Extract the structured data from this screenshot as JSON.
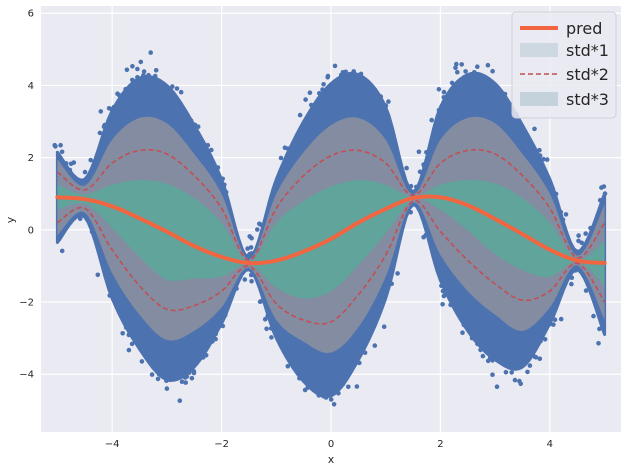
{
  "chart_data": {
    "type": "scatter",
    "xlabel": "x",
    "ylabel": "y",
    "xlim": [
      -5.3,
      5.3
    ],
    "ylim": [
      -5.6,
      6.2
    ],
    "xticks": [
      -4,
      -2,
      0,
      2,
      4
    ],
    "yticks": [
      -4,
      -2,
      0,
      2,
      4,
      6
    ],
    "grid": true,
    "legend_position": "top-right",
    "colors": {
      "background": "#eaeaf2",
      "grid": "#ffffff",
      "scatter": "#4c72b0",
      "pred": "#f26541",
      "std1": "#5aa89a",
      "std2": "#c44e52",
      "std3": "#8a8fa0"
    },
    "series": [
      {
        "name": "pred",
        "kind": "line",
        "x": [
          -5.0,
          -4.5,
          -4.0,
          -3.5,
          -3.0,
          -2.5,
          -2.0,
          -1.5,
          -1.0,
          -0.5,
          0.0,
          0.5,
          1.0,
          1.5,
          2.0,
          2.5,
          3.0,
          3.5,
          4.0,
          4.5,
          5.0
        ],
        "y": [
          0.9,
          0.85,
          0.65,
          0.32,
          -0.05,
          -0.45,
          -0.75,
          -0.92,
          -0.85,
          -0.6,
          -0.25,
          0.2,
          0.58,
          0.88,
          0.9,
          0.68,
          0.3,
          -0.12,
          -0.55,
          -0.85,
          -0.92
        ]
      },
      {
        "name": "std*1",
        "kind": "band",
        "x": [
          -5.0,
          -4.5,
          -4.0,
          -3.5,
          -3.0,
          -2.5,
          -2.0,
          -1.5,
          -1.0,
          -0.5,
          0.0,
          0.5,
          1.0,
          1.5,
          2.0,
          2.5,
          3.0,
          3.5,
          4.0,
          4.5,
          5.0
        ],
        "upper": [
          1.25,
          0.98,
          1.25,
          1.38,
          1.28,
          0.88,
          0.2,
          -0.88,
          0.2,
          0.8,
          1.2,
          1.38,
          1.25,
          0.92,
          1.25,
          1.38,
          1.28,
          0.88,
          0.2,
          -0.82,
          -0.3
        ],
        "lower": [
          0.55,
          0.72,
          0.05,
          -0.75,
          -1.38,
          -1.35,
          -1.3,
          -0.96,
          -1.6,
          -1.9,
          -1.7,
          -0.98,
          -0.1,
          0.84,
          0.55,
          -0.02,
          -0.68,
          -1.12,
          -1.3,
          -0.88,
          -1.55
        ]
      },
      {
        "name": "std*2",
        "kind": "dashed-band",
        "x": [
          -5.0,
          -4.5,
          -4.0,
          -3.5,
          -3.0,
          -2.5,
          -2.0,
          -1.5,
          -1.0,
          -0.5,
          0.0,
          0.5,
          1.0,
          1.5,
          2.0,
          2.5,
          3.0,
          3.5,
          4.0,
          4.5,
          5.0
        ],
        "upper": [
          1.6,
          1.1,
          1.85,
          2.2,
          2.1,
          1.5,
          0.6,
          -0.85,
          0.6,
          1.5,
          2.05,
          2.2,
          1.85,
          0.95,
          1.85,
          2.2,
          2.1,
          1.5,
          0.6,
          -0.78,
          0.2
        ],
        "lower": [
          0.2,
          0.6,
          -0.55,
          -1.55,
          -2.2,
          -2.1,
          -1.7,
          -1.0,
          -2.05,
          -2.5,
          -2.55,
          -1.8,
          -0.7,
          0.8,
          -0.05,
          -0.85,
          -1.5,
          -1.95,
          -1.7,
          -0.92,
          -2.0
        ]
      },
      {
        "name": "std*3",
        "kind": "band",
        "x": [
          -5.0,
          -4.5,
          -4.0,
          -3.5,
          -3.0,
          -2.5,
          -2.0,
          -1.5,
          -1.0,
          -0.5,
          0.0,
          0.5,
          1.0,
          1.5,
          2.0,
          2.5,
          3.0,
          3.5,
          4.0,
          4.5,
          5.0
        ],
        "upper": [
          1.95,
          1.22,
          2.5,
          3.1,
          2.95,
          2.1,
          1.0,
          -0.82,
          1.0,
          2.15,
          2.9,
          3.1,
          2.5,
          0.98,
          2.5,
          3.1,
          2.95,
          2.1,
          1.0,
          -0.72,
          0.7
        ],
        "lower": [
          -0.15,
          0.48,
          -1.2,
          -2.35,
          -3.05,
          -2.8,
          -2.15,
          -1.05,
          -2.5,
          -3.1,
          -3.4,
          -2.7,
          -1.3,
          0.76,
          -0.7,
          -1.7,
          -2.35,
          -2.8,
          -2.15,
          -0.98,
          -2.5
        ]
      },
      {
        "name": "data",
        "kind": "scatter-envelope",
        "x": [
          -5.0,
          -4.5,
          -4.0,
          -3.5,
          -3.0,
          -2.5,
          -2.0,
          -1.5,
          -1.0,
          -0.5,
          0.0,
          0.5,
          1.0,
          1.5,
          2.0,
          2.5,
          3.0,
          3.5,
          4.0,
          4.5,
          5.0
        ],
        "upper": [
          2.15,
          1.4,
          3.3,
          4.2,
          4.0,
          2.9,
          1.4,
          -0.78,
          1.4,
          3.0,
          4.05,
          4.3,
          3.4,
          1.05,
          3.4,
          4.3,
          4.05,
          2.9,
          1.4,
          -0.6,
          1.0
        ],
        "lower": [
          -0.35,
          0.35,
          -1.9,
          -3.3,
          -4.15,
          -3.8,
          -2.6,
          -1.1,
          -3.0,
          -4.2,
          -4.6,
          -3.6,
          -1.9,
          0.7,
          -1.4,
          -2.8,
          -3.6,
          -3.8,
          -2.6,
          -1.1,
          -2.9
        ]
      }
    ],
    "legend": [
      "pred",
      "std*1",
      "std*2",
      "std*3"
    ],
    "tick_labels": {
      "x": [
        "−4",
        "−2",
        "0",
        "2",
        "4"
      ],
      "y": [
        "−4",
        "−2",
        "0",
        "2",
        "4",
        "6"
      ]
    }
  }
}
